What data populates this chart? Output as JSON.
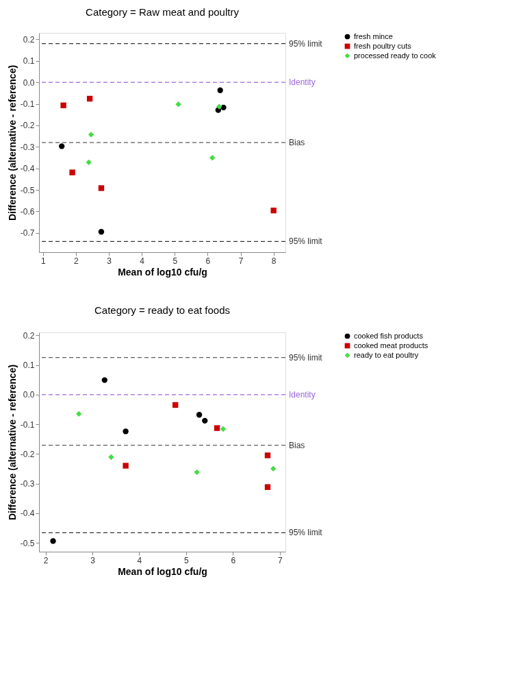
{
  "chart_data": [
    {
      "type": "scatter",
      "title": "Category = Raw meat and poultry",
      "xlabel": "Mean of log10 cfu/g",
      "ylabel": "Difference (alternative - reference)",
      "xlim": [
        0.88,
        8.36
      ],
      "ylim": [
        -0.79,
        0.23
      ],
      "xticks": [
        1,
        2,
        3,
        4,
        5,
        6,
        7,
        8
      ],
      "yticks": [
        0.2,
        0.1,
        {
          "value": 0,
          "label": "0.0"
        },
        -0.1,
        -0.2,
        -0.3,
        -0.4,
        -0.5,
        -0.6,
        -0.7
      ],
      "grid": false,
      "legend": "top right",
      "series": [
        {
          "name": "fresh mince",
          "color": "#000000",
          "marker": "circle",
          "x": [
            1.57,
            2.77,
            6.38,
            6.32,
            6.48
          ],
          "values": [
            -0.297,
            -0.695,
            -0.037,
            -0.129,
            -0.117
          ]
        },
        {
          "name": "fresh poultry cuts",
          "color": "#cc0000",
          "marker": "square",
          "x": [
            1.62,
            2.42,
            1.89,
            2.77,
            8.0
          ],
          "values": [
            -0.107,
            -0.076,
            -0.419,
            -0.492,
            -0.596
          ]
        },
        {
          "name": "processed ready to cook",
          "color": "#44dd44",
          "marker": "diamond",
          "x": [
            5.11,
            6.35,
            2.46,
            2.39,
            6.14
          ],
          "values": [
            -0.102,
            -0.113,
            -0.243,
            -0.372,
            -0.351
          ]
        }
      ],
      "ref_lines": [
        {
          "axis": "y",
          "value": 0.18,
          "label": "95% limit",
          "color": "#333333",
          "line_style": "dashed"
        },
        {
          "axis": "y",
          "value": 0,
          "label": "Identity",
          "color": "#9966dd",
          "line_style": "dashed"
        },
        {
          "axis": "y",
          "value": -0.28,
          "label": "Bias",
          "color": "#333333",
          "line_style": "dashed"
        },
        {
          "axis": "y",
          "value": -0.74,
          "label": "95% limit",
          "color": "#333333",
          "line_style": "dashed"
        }
      ]
    },
    {
      "type": "scatter",
      "title": "Category = ready to eat foods",
      "xlabel": "Mean of log10 cfu/g",
      "ylabel": "Difference (alternative - reference)",
      "xlim": [
        1.86,
        7.12
      ],
      "ylim": [
        -0.53,
        0.21
      ],
      "xticks": [
        2,
        3,
        4,
        5,
        6,
        7
      ],
      "yticks": [
        0.2,
        0.1,
        {
          "value": 0,
          "label": "0.0"
        },
        -0.1,
        -0.2,
        -0.3,
        -0.4,
        -0.5
      ],
      "grid": false,
      "legend": "top right",
      "series": [
        {
          "name": "cooked fish products",
          "color": "#000000",
          "marker": "circle",
          "x": [
            2.16,
            3.26,
            3.71,
            5.28,
            5.4
          ],
          "values": [
            -0.494,
            0.049,
            -0.124,
            -0.068,
            -0.088
          ]
        },
        {
          "name": "cooked meat products",
          "color": "#cc0000",
          "marker": "square",
          "x": [
            4.77,
            3.71,
            5.66,
            6.74,
            6.74
          ],
          "values": [
            -0.035,
            -0.24,
            -0.113,
            -0.205,
            -0.312
          ]
        },
        {
          "name": "ready to eat poultry",
          "color": "#44dd44",
          "marker": "diamond",
          "x": [
            2.71,
            3.4,
            5.23,
            5.79,
            6.86
          ],
          "values": [
            -0.065,
            -0.211,
            -0.262,
            -0.116,
            -0.25
          ]
        }
      ],
      "ref_lines": [
        {
          "axis": "y",
          "value": 0.125,
          "label": "95% limit",
          "color": "#333333",
          "line_style": "dashed"
        },
        {
          "axis": "y",
          "value": 0,
          "label": "Identity",
          "color": "#9966dd",
          "line_style": "dashed"
        },
        {
          "axis": "y",
          "value": -0.171,
          "label": "Bias",
          "color": "#333333",
          "line_style": "dashed"
        },
        {
          "axis": "y",
          "value": -0.466,
          "label": "95% limit",
          "color": "#333333",
          "line_style": "dashed"
        }
      ]
    }
  ]
}
